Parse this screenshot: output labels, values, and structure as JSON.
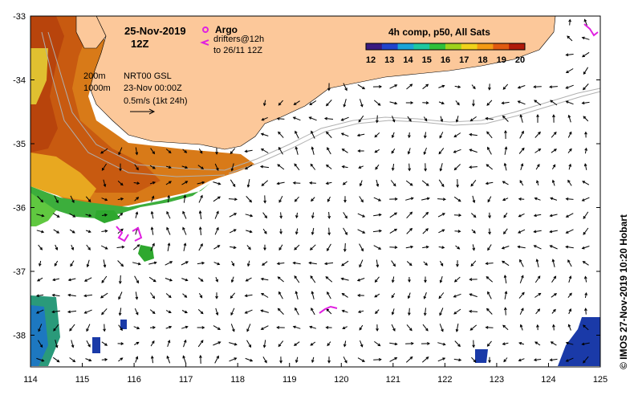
{
  "map": {
    "date_title": "25-Nov-2019",
    "time_title": "12Z",
    "legend_argo": "Argo",
    "legend_drifters_line1": "drifters@12h",
    "legend_drifters_line2": "to 26/11 12Z",
    "depth_200": "200m",
    "depth_1000": "1000m",
    "product": "NRT00 GSL",
    "product_time": "23-Nov 00:00Z",
    "vector_scale": "0.5m/s (1kt 24h)",
    "colorbar_title": "4h comp, p50, All Sats",
    "colorbar_ticks": [
      "12",
      "13",
      "14",
      "15",
      "16",
      "17",
      "18",
      "19",
      "20"
    ],
    "credit": "© IMOS 27-Nov-2019 10:20 Hobart",
    "x_ticks": [
      "114",
      "115",
      "116",
      "117",
      "118",
      "119",
      "120",
      "121",
      "122",
      "123",
      "124",
      "125"
    ],
    "y_ticks": [
      "-33",
      "-34",
      "-35",
      "-36",
      "-37",
      "-38"
    ],
    "colors": {
      "land": "#fcc89a",
      "ocean": "#ffffff",
      "argo": "#e020e0",
      "drifter": "#e020e0",
      "isobath": "#b0b0b0",
      "sst_warm": "#d86a10",
      "sst_mid": "#e8a018",
      "sst_cool": "#2ea82e",
      "sst_cold": "#1a3aa8"
    },
    "colorbar_colors": [
      "#3a1a80",
      "#2244cc",
      "#1ba4d8",
      "#1ec8a0",
      "#2fbf3a",
      "#9fd21c",
      "#f0d21a",
      "#f39a14",
      "#e05a10",
      "#b01a0a"
    ]
  }
}
